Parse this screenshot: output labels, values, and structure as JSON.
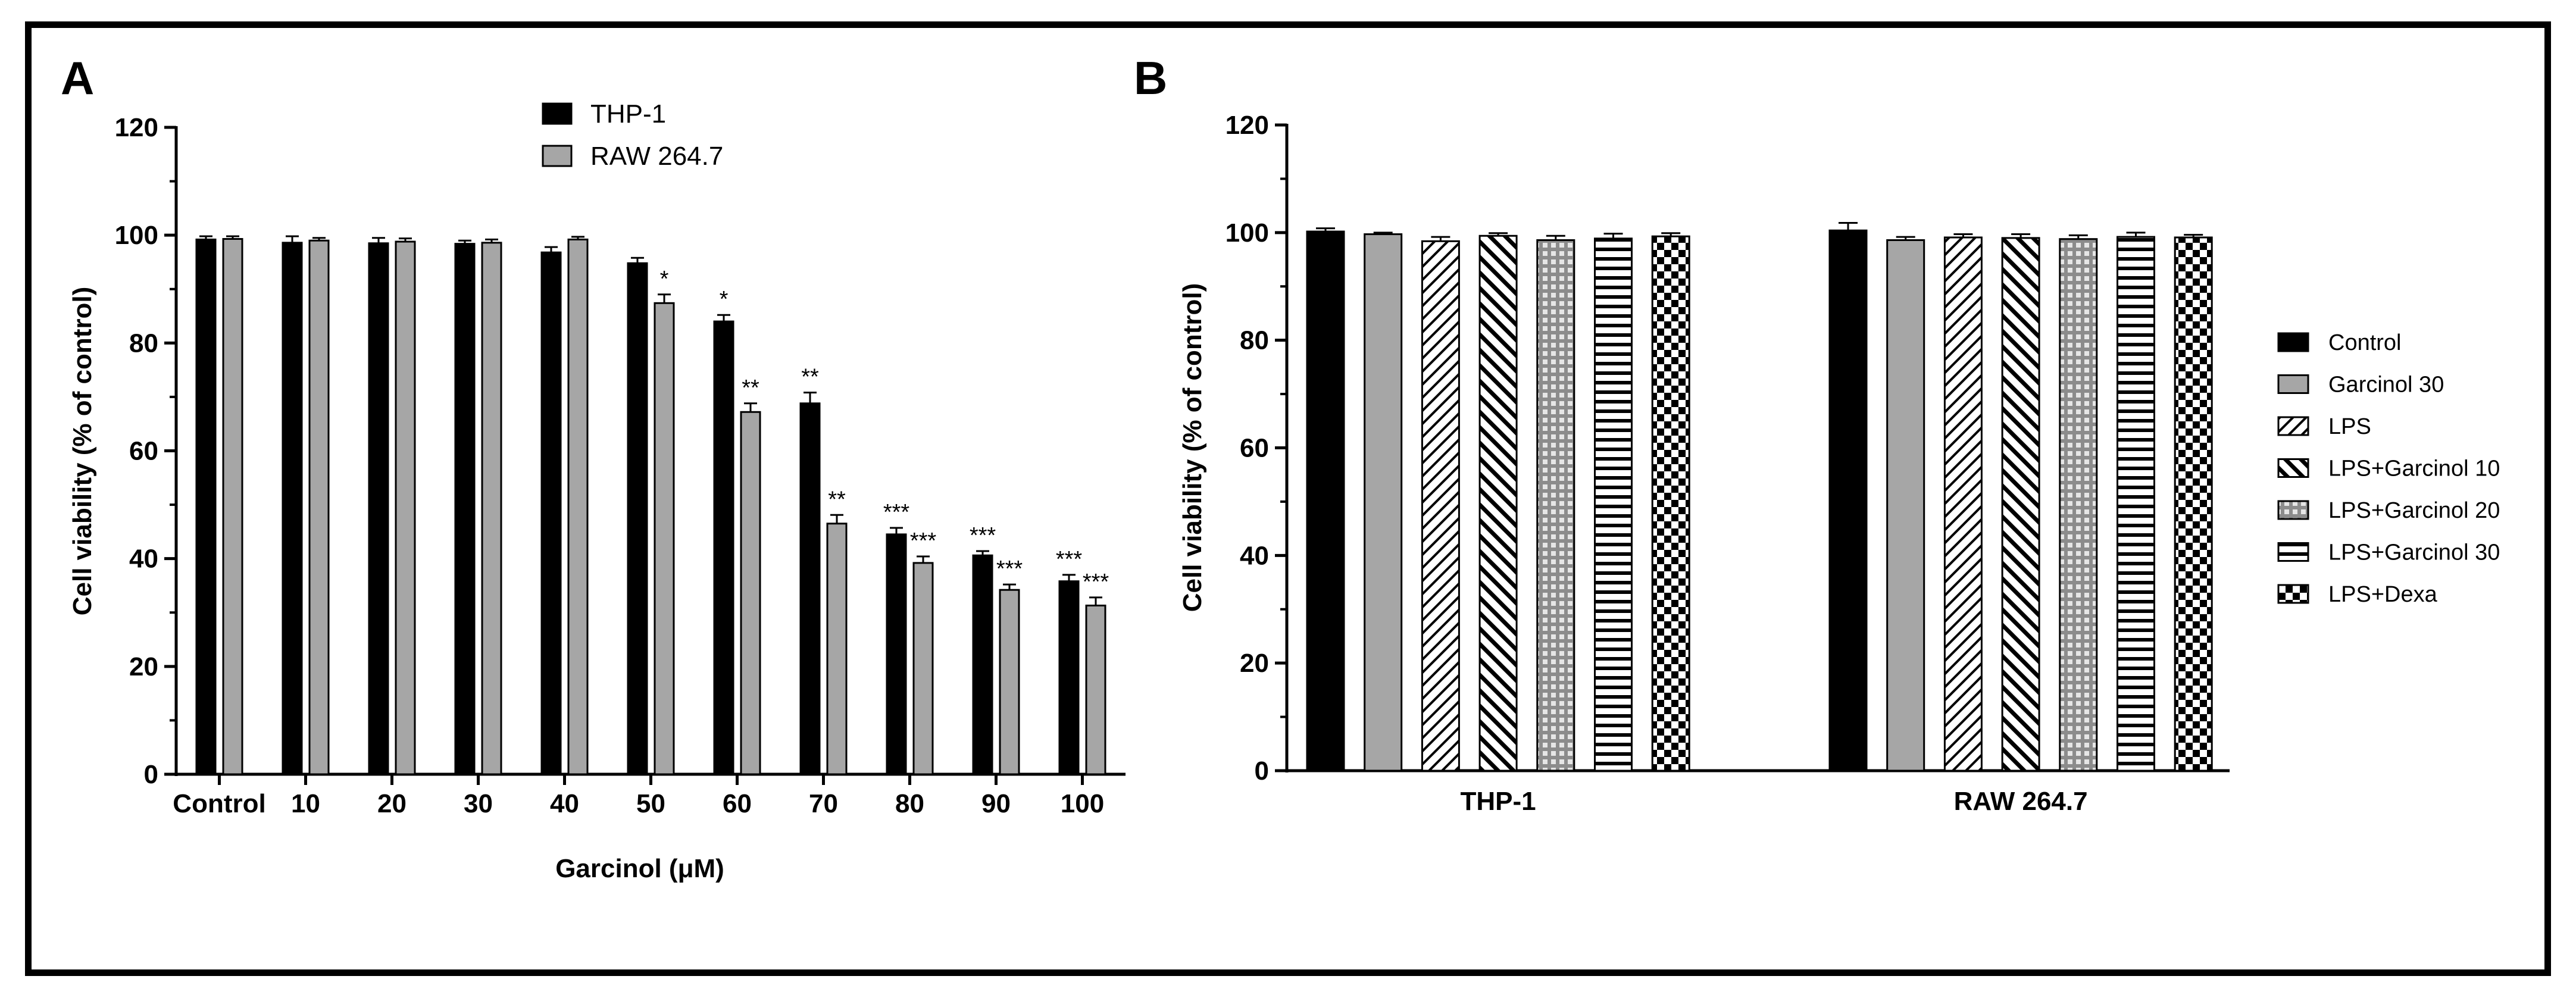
{
  "figure": {
    "panels": [
      "A",
      "B"
    ]
  },
  "colors": {
    "black": "#000000",
    "gray": "#a6a6a6",
    "white": "#ffffff"
  },
  "chart_data": [
    {
      "type": "bar",
      "panel": "A",
      "categories": [
        "Control",
        "10",
        "20",
        "30",
        "40",
        "50",
        "60",
        "70",
        "80",
        "90",
        "100"
      ],
      "series": [
        {
          "name": "THP-1",
          "color": "#000000",
          "values": [
            99.2,
            98.6,
            98.5,
            98.4,
            96.8,
            94.8,
            84.0,
            68.8,
            44.5,
            40.6,
            35.8
          ],
          "errors": [
            0.6,
            1.2,
            1.0,
            0.6,
            1.0,
            1.0,
            1.2,
            2.0,
            1.2,
            0.8,
            1.2
          ],
          "significance": [
            "",
            "",
            "",
            "",
            "",
            "",
            "*",
            "**",
            "***",
            "***",
            "***"
          ]
        },
        {
          "name": "RAW 264.7",
          "color": "#a6a6a6",
          "values": [
            99.3,
            99.0,
            98.8,
            98.6,
            99.2,
            87.4,
            67.2,
            46.5,
            39.2,
            34.2,
            31.3
          ],
          "errors": [
            0.5,
            0.5,
            0.6,
            0.6,
            0.5,
            1.6,
            1.6,
            1.6,
            1.2,
            1.0,
            1.5
          ],
          "significance": [
            "",
            "",
            "",
            "",
            "",
            "*",
            "**",
            "**",
            "***",
            "***",
            "***"
          ]
        }
      ],
      "xlabel": "Garcinol (μM)",
      "ylabel": "Cell viability (% of control)",
      "ylim": [
        0,
        120
      ],
      "yticks": [
        "0",
        "20",
        "40",
        "60",
        "80",
        "100",
        "120"
      ],
      "legend_position": "top-center"
    },
    {
      "type": "bar",
      "panel": "B",
      "categories": [
        "THP-1",
        "RAW 264.7"
      ],
      "series": [
        {
          "name": "Control",
          "pattern": "solid-black",
          "values": [
            100.2,
            100.4
          ],
          "errors": [
            0.6,
            1.4
          ]
        },
        {
          "name": "Garcinol 30",
          "pattern": "solid-gray",
          "values": [
            99.7,
            98.6
          ],
          "errors": [
            0.3,
            0.6
          ]
        },
        {
          "name": "LPS",
          "pattern": "diagonal-up",
          "values": [
            98.4,
            99.1
          ],
          "errors": [
            0.8,
            0.6
          ]
        },
        {
          "name": "LPS+Garcinol 10",
          "pattern": "diagonal-down",
          "values": [
            99.4,
            99.0
          ],
          "errors": [
            0.5,
            0.7
          ]
        },
        {
          "name": "LPS+Garcinol 20",
          "pattern": "grid",
          "values": [
            98.6,
            98.8
          ],
          "errors": [
            0.8,
            0.7
          ]
        },
        {
          "name": "LPS+Garcinol 30",
          "pattern": "horizontal",
          "values": [
            98.9,
            99.2
          ],
          "errors": [
            0.9,
            0.8
          ]
        },
        {
          "name": "LPS+Dexa",
          "pattern": "checker",
          "values": [
            99.3,
            99.1
          ],
          "errors": [
            0.6,
            0.5
          ]
        }
      ],
      "xlabel": "",
      "ylabel": "Cell viability (% of control)",
      "ylim": [
        0,
        120
      ],
      "yticks": [
        "0",
        "20",
        "40",
        "60",
        "80",
        "100",
        "120"
      ],
      "legend_position": "right"
    }
  ]
}
